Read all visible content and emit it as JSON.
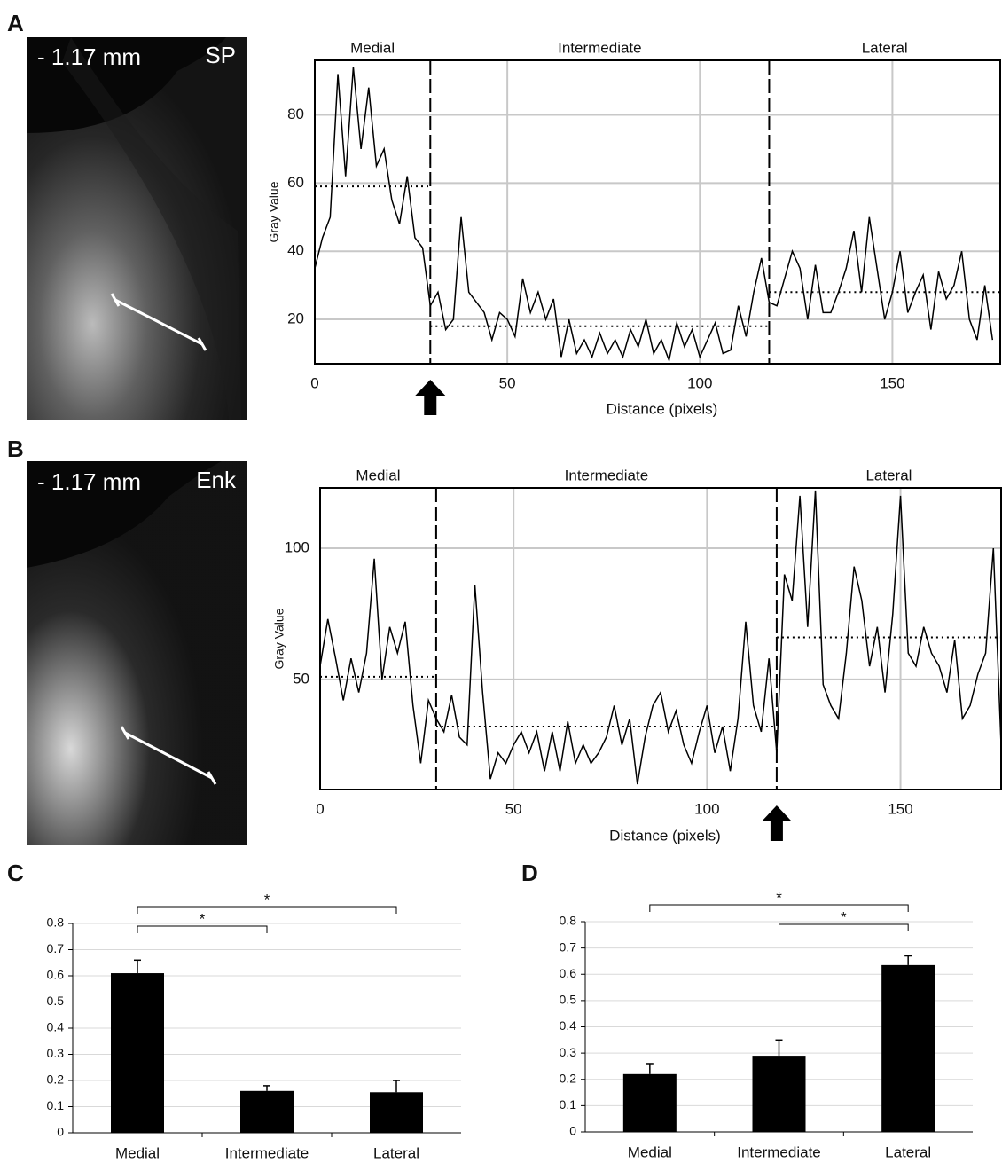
{
  "images": [
    {
      "depth": "- 1.17 mm",
      "stain": "SP"
    },
    {
      "depth": "- 1.17 mm",
      "stain": "Enk"
    }
  ],
  "chart_data": [
    {
      "type": "line",
      "panel": "A",
      "xlabel": "Distance (pixels)",
      "ylabel": "Gray Value",
      "regions": [
        "Medial",
        "Intermediate",
        "Lateral"
      ],
      "boundaries": [
        30,
        118
      ],
      "region_means": [
        59,
        18,
        28
      ],
      "arrow_x": 30,
      "xlim": [
        0,
        178
      ],
      "ylim": [
        7,
        96
      ],
      "xticks": [
        0,
        50,
        100,
        150
      ],
      "yticks": [
        20,
        40,
        60,
        80
      ],
      "grid": true,
      "color": "#000000",
      "x": [
        0,
        2,
        4,
        6,
        8,
        10,
        12,
        14,
        16,
        18,
        20,
        22,
        24,
        26,
        28,
        30,
        32,
        34,
        36,
        38,
        40,
        42,
        44,
        46,
        48,
        50,
        52,
        54,
        56,
        58,
        60,
        62,
        64,
        66,
        68,
        70,
        72,
        74,
        76,
        78,
        80,
        82,
        84,
        86,
        88,
        90,
        92,
        94,
        96,
        98,
        100,
        102,
        104,
        106,
        108,
        110,
        112,
        114,
        116,
        118,
        120,
        122,
        124,
        126,
        128,
        130,
        132,
        134,
        136,
        138,
        140,
        142,
        144,
        146,
        148,
        150,
        152,
        154,
        156,
        158,
        160,
        162,
        164,
        166,
        168,
        170,
        172,
        174,
        176
      ],
      "values": [
        35,
        44,
        50,
        92,
        62,
        94,
        70,
        88,
        65,
        70,
        55,
        48,
        62,
        44,
        41,
        24,
        28,
        17,
        20,
        50,
        28,
        25,
        22,
        14,
        22,
        20,
        15,
        32,
        22,
        28,
        20,
        26,
        9,
        20,
        10,
        14,
        9,
        16,
        10,
        14,
        9,
        17,
        12,
        20,
        10,
        14,
        8,
        19,
        12,
        17,
        9,
        14,
        19,
        10,
        11,
        24,
        15,
        28,
        38,
        25,
        24,
        32,
        40,
        35,
        20,
        36,
        22,
        22,
        28,
        35,
        46,
        28,
        50,
        35,
        20,
        28,
        40,
        22,
        28,
        33,
        17,
        34,
        26,
        30,
        40,
        20,
        14,
        30,
        14
      ]
    },
    {
      "type": "line",
      "panel": "B",
      "xlabel": "Distance (pixels)",
      "ylabel": "Gray Value",
      "regions": [
        "Medial",
        "Intermediate",
        "Lateral"
      ],
      "boundaries": [
        30,
        118
      ],
      "region_means": [
        51,
        32,
        66
      ],
      "arrow_x": 118,
      "xlim": [
        0,
        176
      ],
      "ylim": [
        8,
        123
      ],
      "xticks": [
        0,
        50,
        100,
        150
      ],
      "yticks": [
        50,
        100
      ],
      "grid": true,
      "color": "#000000",
      "x": [
        0,
        2,
        4,
        6,
        8,
        10,
        12,
        14,
        16,
        18,
        20,
        22,
        24,
        26,
        28,
        30,
        32,
        34,
        36,
        38,
        40,
        42,
        44,
        46,
        48,
        50,
        52,
        54,
        56,
        58,
        60,
        62,
        64,
        66,
        68,
        70,
        72,
        74,
        76,
        78,
        80,
        82,
        84,
        86,
        88,
        90,
        92,
        94,
        96,
        98,
        100,
        102,
        104,
        106,
        108,
        110,
        112,
        114,
        116,
        118,
        120,
        122,
        124,
        126,
        128,
        130,
        132,
        134,
        136,
        138,
        140,
        142,
        144,
        146,
        148,
        150,
        152,
        154,
        156,
        158,
        160,
        162,
        164,
        166,
        168,
        170,
        172,
        174,
        176
      ],
      "values": [
        55,
        73,
        58,
        42,
        58,
        45,
        60,
        96,
        50,
        70,
        60,
        72,
        40,
        18,
        42,
        35,
        30,
        44,
        28,
        25,
        86,
        45,
        12,
        22,
        18,
        25,
        30,
        22,
        30,
        15,
        30,
        15,
        34,
        18,
        25,
        18,
        22,
        28,
        40,
        25,
        35,
        10,
        28,
        40,
        45,
        30,
        38,
        25,
        18,
        30,
        40,
        22,
        32,
        15,
        35,
        72,
        40,
        30,
        58,
        22,
        90,
        80,
        120,
        70,
        122,
        48,
        40,
        35,
        60,
        93,
        80,
        55,
        70,
        45,
        75,
        120,
        60,
        55,
        70,
        60,
        55,
        45,
        65,
        35,
        40,
        52,
        60,
        100,
        25
      ]
    },
    {
      "type": "bar",
      "panel": "C",
      "categories": [
        "Medial",
        "Intermediate",
        "Lateral"
      ],
      "values": [
        0.61,
        0.16,
        0.155
      ],
      "errors": [
        0.05,
        0.02,
        0.045
      ],
      "color": "#000000",
      "ylim": [
        0,
        0.8
      ],
      "yticks": [
        0,
        0.1,
        0.2,
        0.3,
        0.4,
        0.5,
        0.6,
        0.7,
        0.8
      ],
      "grid": true,
      "brackets": [
        {
          "from": 0,
          "to": 2,
          "label": "*"
        },
        {
          "from": 0,
          "to": 1,
          "label": "*"
        }
      ]
    },
    {
      "type": "bar",
      "panel": "D",
      "categories": [
        "Medial",
        "Intermediate",
        "Lateral"
      ],
      "values": [
        0.22,
        0.29,
        0.635
      ],
      "errors": [
        0.04,
        0.06,
        0.035
      ],
      "color": "#000000",
      "ylim": [
        0,
        0.8
      ],
      "yticks": [
        0,
        0.1,
        0.2,
        0.3,
        0.4,
        0.5,
        0.6,
        0.7,
        0.8
      ],
      "grid": true,
      "brackets": [
        {
          "from": 0,
          "to": 2,
          "label": "*"
        },
        {
          "from": 1,
          "to": 2,
          "label": "*"
        }
      ]
    }
  ]
}
